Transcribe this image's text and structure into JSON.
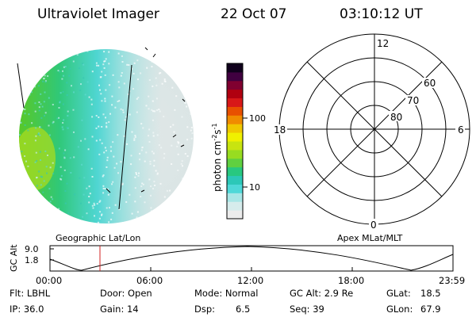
{
  "header": {
    "instrument": "Ultraviolet Imager",
    "date": "22 Oct 07",
    "time": "03:10:12 UT"
  },
  "colorbar": {
    "unit_label": "photon cm",
    "unit_sup1": "-2",
    "unit_mid": "s",
    "unit_sup2": "-1",
    "tick_100": "100",
    "tick_10": "10",
    "colors": [
      "#ececec",
      "#d6ecec",
      "#a8e6e6",
      "#4fd8d8",
      "#2cc8b8",
      "#28c880",
      "#60d040",
      "#98dc20",
      "#c8e410",
      "#f0f000",
      "#f0c800",
      "#f08c00",
      "#e85000",
      "#d81818",
      "#b00010",
      "#800030",
      "#400040",
      "#10001c"
    ]
  },
  "polar_plot": {
    "mlt_labels": [
      "12",
      "18",
      "6",
      "0"
    ],
    "lat_labels": [
      "60",
      "70",
      "80"
    ]
  },
  "geo_label": "Geographic Lat/Lon",
  "apex_label": "Apex MLat/MLT",
  "alt_plot": {
    "ylabel": "GC Alt",
    "ytick_top": "9.0",
    "ytick_bottom": "1.8",
    "xticks": [
      "00:00",
      "06:00",
      "12:00",
      "18:00",
      "23:59"
    ]
  },
  "info": {
    "flt": "Flt: LBHL",
    "ip": "IP: 36.0",
    "door": "Door: Open",
    "gain": "Gain: 14",
    "mode": "Mode: Normal",
    "dsp_label": "Dsp:",
    "dsp_value": "6.5",
    "gcalt": "GC Alt: 2.9 Re",
    "seq": "Seq: 39",
    "glat_label": "GLat:",
    "glat_value": "18.5",
    "glon_label": "GLon:",
    "glon_value": "67.9"
  }
}
